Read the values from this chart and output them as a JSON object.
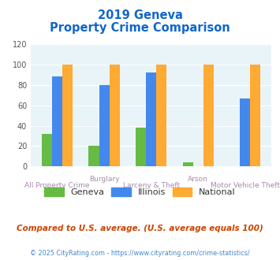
{
  "title_line1": "2019 Geneva",
  "title_line2": "Property Crime Comparison",
  "categories": [
    "All Property Crime",
    "Burglary",
    "Larceny & Theft",
    "Arson",
    "Motor Vehicle Theft"
  ],
  "top_labels": [
    "",
    "Burglary",
    "",
    "Arson",
    ""
  ],
  "bottom_labels": [
    "All Property Crime",
    "",
    "Larceny & Theft",
    "",
    "Motor Vehicle Theft"
  ],
  "geneva": [
    32,
    20,
    38,
    4,
    0
  ],
  "illinois": [
    88,
    80,
    92,
    0,
    67
  ],
  "national": [
    100,
    100,
    100,
    100,
    100
  ],
  "geneva_color": "#66bb44",
  "illinois_color": "#4488ee",
  "national_color": "#ffaa33",
  "title_color": "#1166cc",
  "xlabel_color": "#aa88aa",
  "ytick_color": "#555555",
  "ylabel_max": 120,
  "ylabel_ticks": [
    0,
    20,
    40,
    60,
    80,
    100,
    120
  ],
  "fig_bg_color": "#ffffff",
  "plot_bg_color": "#e8f4f8",
  "footer_text": "Compared to U.S. average. (U.S. average equals 100)",
  "copyright_text": "© 2025 CityRating.com - https://www.cityrating.com/crime-statistics/",
  "legend_labels": [
    "Geneva",
    "Illinois",
    "National"
  ],
  "bar_width": 0.22
}
